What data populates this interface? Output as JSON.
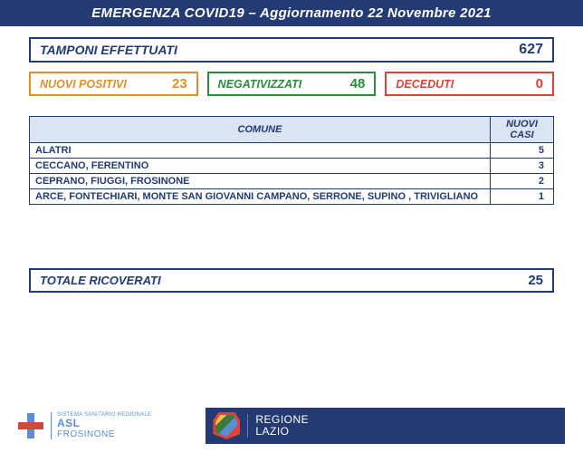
{
  "header": {
    "title": "EMERGENZA COVID19 – Aggiornamento 22 Novembre 2021",
    "bg": "#233a72",
    "color": "#ffffff"
  },
  "tamponi": {
    "label": "TAMPONI EFFETTUATI",
    "value": "627",
    "border": "#233a72",
    "text_color": "#233a72"
  },
  "stats": [
    {
      "label": "NUOVI POSITIVI",
      "value": "23",
      "color": "#e0902e"
    },
    {
      "label": "NEGATIVIZZATI",
      "value": "48",
      "color": "#2e8a3e"
    },
    {
      "label": "DECEDUTI",
      "value": "0",
      "color": "#d9453a"
    }
  ],
  "table": {
    "col_comune": "COMUNE",
    "col_casi": "NUOVI CASI",
    "header_bg": "#dbe4f3",
    "border": "#233a72",
    "rows": [
      {
        "name": "ALATRI",
        "cases": "5"
      },
      {
        "name": "CECCANO, FERENTINO",
        "cases": "3"
      },
      {
        "name": "CEPRANO, FIUGGI, FROSINONE",
        "cases": "2"
      },
      {
        "name": "ARCE, FONTECHIARI, MONTE SAN GIOVANNI CAMPANO, SERRONE, SUPINO , TRIVIGLIANO",
        "cases": "1"
      }
    ]
  },
  "ricoverati": {
    "label": "TOTALE RICOVERATI",
    "value": "25",
    "border": "#233a72"
  },
  "footer": {
    "asl": {
      "line1": "SISTEMA SANITARIO REGIONALE",
      "line2": "ASL",
      "line3": "FROSINONE"
    },
    "lazio": {
      "line1": "REGIONE",
      "line2": "LAZIO",
      "bg": "#233a72"
    }
  }
}
